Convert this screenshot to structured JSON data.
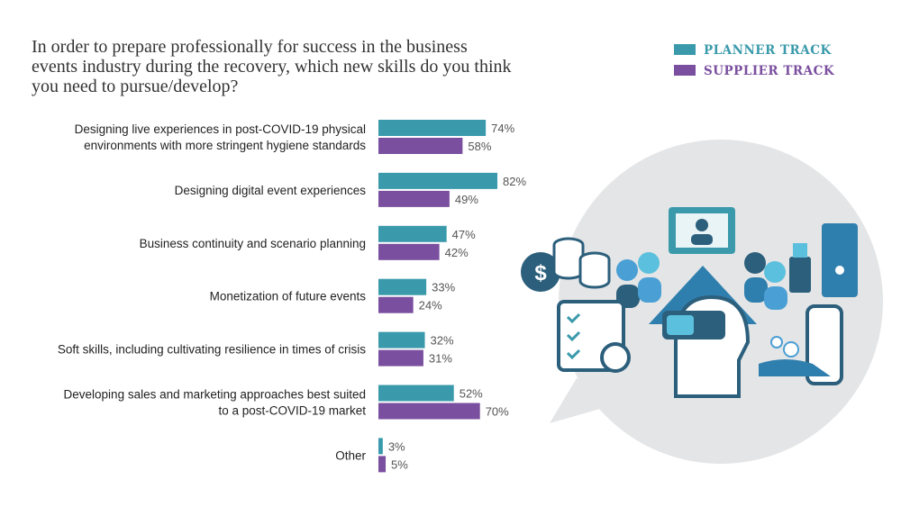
{
  "chart_data": {
    "type": "bar",
    "orientation": "horizontal",
    "title": "In order to prepare professionally for success in the business\nevents industry during the recovery, which new skills do you think\nyou need to pursue/develop?",
    "categories": [
      "Designing live experiences in post-COVID-19 physical\nenvironments with more stringent hygiene standards",
      "Designing digital event experiences",
      "Business continuity and scenario planning",
      "Monetization of future events",
      "Soft skills, including cultivating resilience in times of crisis",
      "Developing sales and marketing approaches best suited\nto a post-COVID-19 market",
      "Other"
    ],
    "series": [
      {
        "name": "PLANNER TRACK",
        "color": "#3a9aab",
        "values": [
          74,
          82,
          47,
          33,
          32,
          52,
          3
        ],
        "value_labels": [
          "74%",
          "82%",
          "47%",
          "33%",
          "32%",
          "52%",
          "3%"
        ]
      },
      {
        "name": "SUPPLIER TRACK",
        "color": "#7a4f9f",
        "values": [
          58,
          49,
          42,
          24,
          31,
          70,
          5
        ],
        "value_labels": [
          "58%",
          "49%",
          "42%",
          "24%",
          "31%",
          "70%",
          "5%"
        ]
      }
    ],
    "legend": "top-right"
  }
}
